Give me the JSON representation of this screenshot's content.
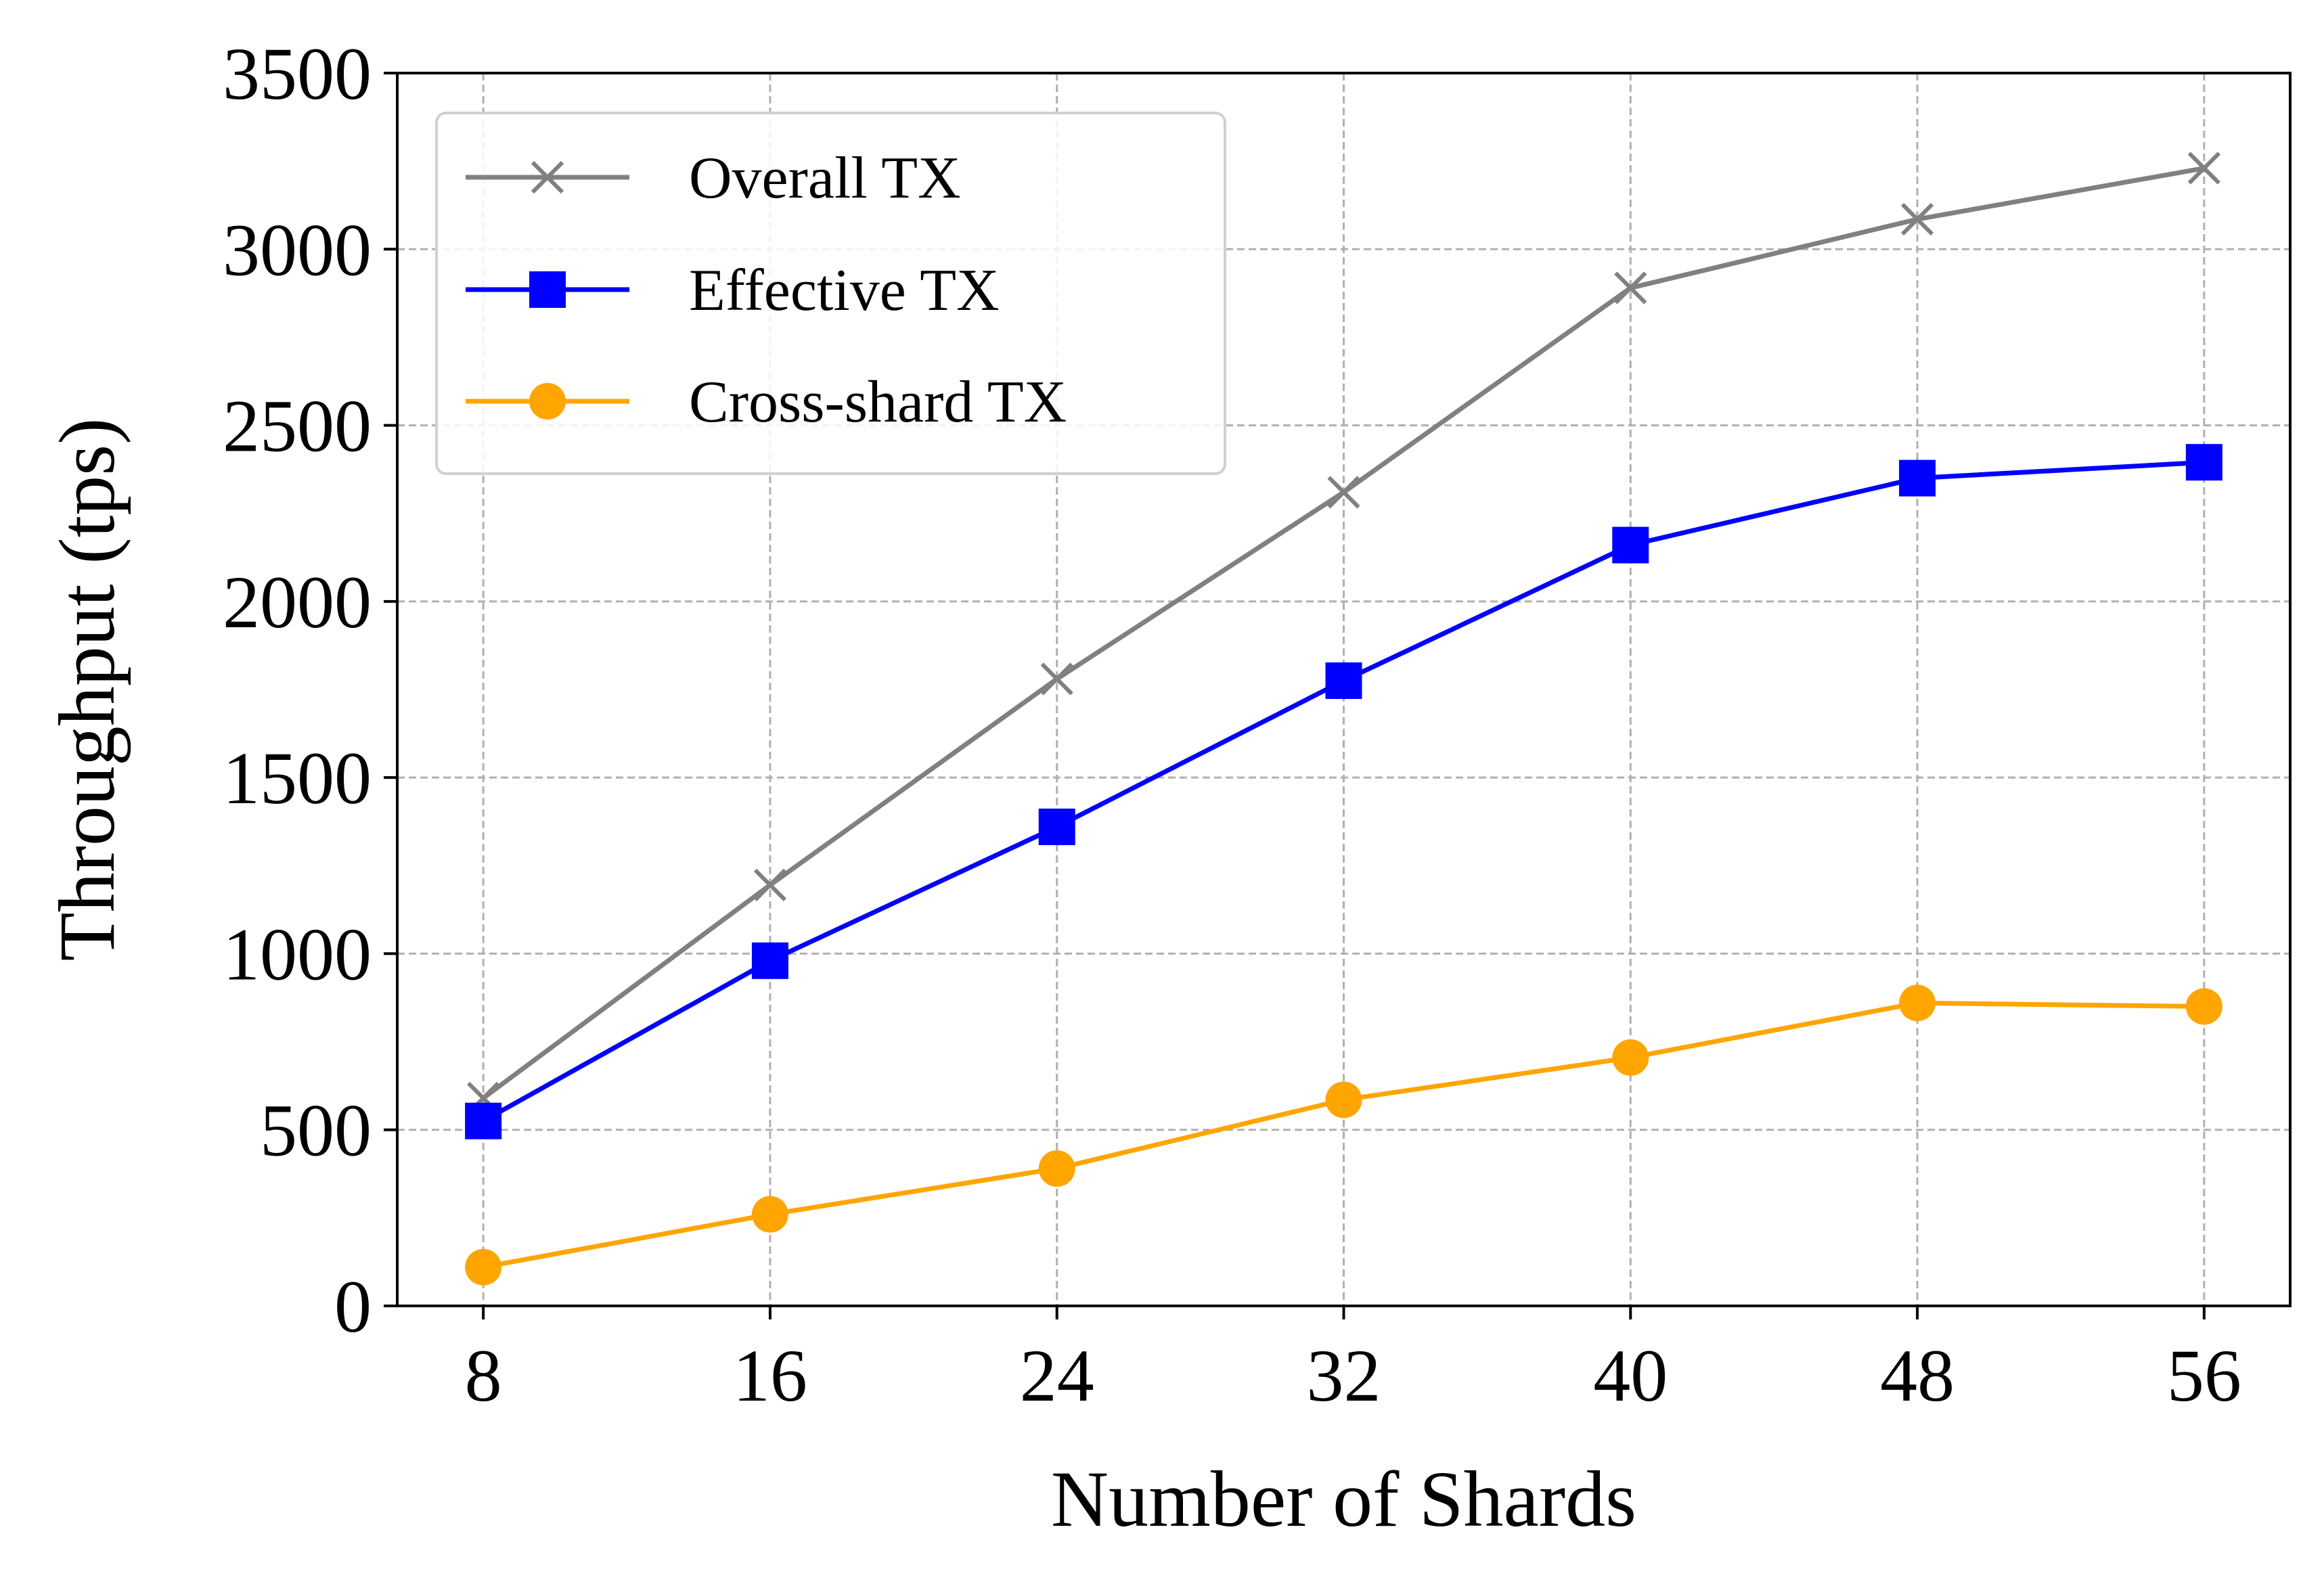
{
  "chart_data": {
    "type": "line",
    "title": "",
    "xlabel": "Number of Shards",
    "ylabel": "Throughput (tps)",
    "x": [
      8,
      16,
      24,
      32,
      40,
      48,
      56
    ],
    "xlim": [
      5.6,
      58.4
    ],
    "ylim": [
      0,
      3500
    ],
    "yticks": [
      0,
      500,
      1000,
      1500,
      2000,
      2500,
      3000,
      3500
    ],
    "grid": true,
    "legend_position": "top-left",
    "series": [
      {
        "name": "Overall TX",
        "color": "#808080",
        "marker": "x",
        "values": [
          590,
          1195,
          1780,
          2310,
          2890,
          3085,
          3230
        ]
      },
      {
        "name": "Effective TX",
        "color": "#0000ff",
        "marker": "square",
        "values": [
          525,
          980,
          1360,
          1775,
          2160,
          2350,
          2395
        ]
      },
      {
        "name": "Cross-shard TX",
        "color": "#ffa500",
        "marker": "circle",
        "values": [
          110,
          260,
          390,
          585,
          705,
          860,
          850
        ]
      }
    ]
  }
}
